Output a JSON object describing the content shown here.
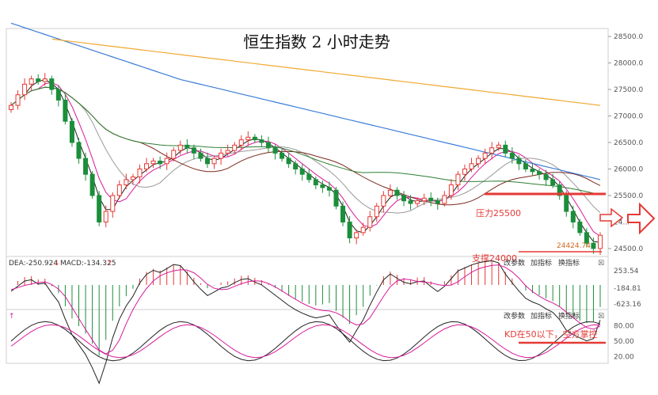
{
  "chart_data": {
    "type": "candlestick",
    "title": "恒生指数 2 小时走势",
    "price_axis": {
      "ticks": [
        "28500.0",
        "28000.0",
        "27500.0",
        "27000.0",
        "26500.0",
        "26000.0",
        "25500.0",
        "24500.0"
      ],
      "tick_values": [
        28500,
        28000,
        27500,
        27000,
        26500,
        26000,
        25500,
        24500
      ],
      "ylim": [
        24350,
        28650
      ],
      "partial_tick": "24..."
    },
    "candles_close": [
      27200,
      27400,
      27600,
      27700,
      27650,
      27700,
      27500,
      27300,
      26900,
      26500,
      26200,
      25900,
      25500,
      25000,
      25200,
      25500,
      25700,
      25800,
      25850,
      26000,
      26100,
      26150,
      26100,
      26200,
      26350,
      26450,
      26400,
      26300,
      26200,
      26100,
      26200,
      26300,
      26350,
      26450,
      26550,
      26600,
      26550,
      26500,
      26400,
      26300,
      26200,
      26100,
      26000,
      25900,
      25800,
      25700,
      25650,
      25600,
      25300,
      25000,
      24700,
      24800,
      24900,
      25100,
      25300,
      25500,
      25600,
      25500,
      25400,
      25350,
      25400,
      25450,
      25400,
      25350,
      25500,
      25700,
      25900,
      26000,
      26100,
      26200,
      26300,
      26400,
      26450,
      26300,
      26200,
      26100,
      26000,
      25950,
      25900,
      25800,
      25700,
      25500,
      25200,
      25000,
      24800,
      24600,
      24500,
      24750
    ],
    "low_label": "24424.74",
    "annotations": {
      "resistance": "压力25500",
      "support": "支撑24000",
      "kd_note": "KD在50以下，空方掌控"
    },
    "macd": {
      "header": "DEA:-250.924",
      "down_arrow": "↓",
      "macd_label": "MACD:-134.325",
      "up_arrow": "↑",
      "axis_ticks": [
        "253.54",
        "-184.81",
        "-623.16"
      ]
    },
    "kd": {
      "header_arrow": "↑",
      "axis_ticks": [
        "80.00",
        "50.00",
        "20.00"
      ]
    },
    "panel_buttons": [
      "改参数",
      "加指标",
      "换指标"
    ],
    "close_symbol": "☒",
    "colors": {
      "up": "#e53935",
      "down": "#1b8e3b",
      "ma_blue": "#3b7dd8",
      "ma_orange": "#f0a830",
      "ma_green": "#2e7d32",
      "ma_magenta": "#d81b9a",
      "ma_black": "#222222",
      "ma_brown": "#7a2a1e"
    }
  }
}
